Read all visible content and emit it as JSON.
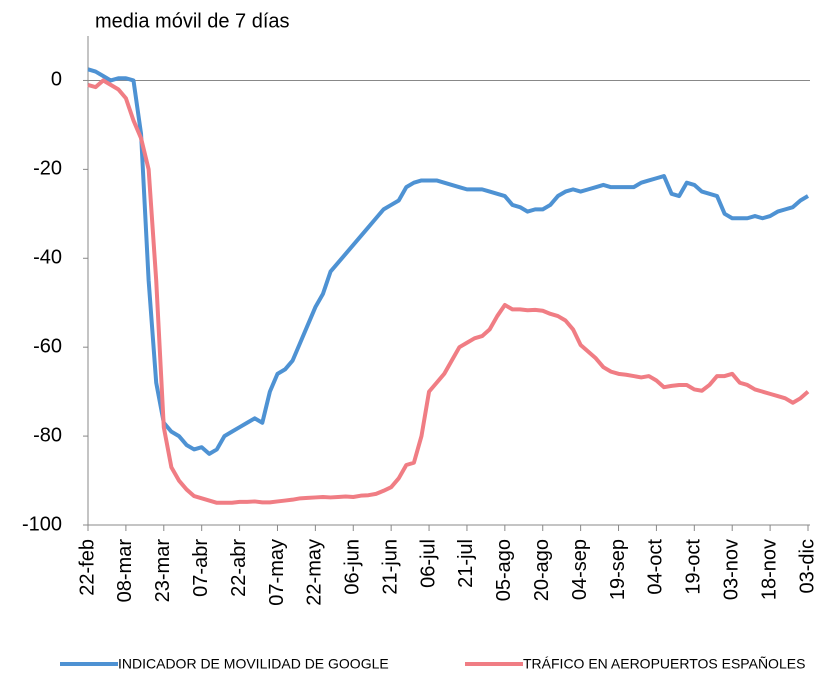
{
  "chart_data": {
    "type": "line",
    "subtitle": "media móvil de 7 días",
    "categories": [
      "22-feb",
      null,
      null,
      null,
      null,
      "08-mar",
      null,
      null,
      null,
      null,
      "23-mar",
      null,
      null,
      null,
      null,
      "07-abr",
      null,
      null,
      null,
      null,
      "22-abr",
      null,
      null,
      null,
      null,
      "07-may",
      null,
      null,
      null,
      null,
      "22-may",
      null,
      null,
      null,
      null,
      "06-jun",
      null,
      null,
      null,
      null,
      "21-jun",
      null,
      null,
      null,
      null,
      "06-jul",
      null,
      null,
      null,
      null,
      "21-jul",
      null,
      null,
      null,
      null,
      "05-ago",
      null,
      null,
      null,
      null,
      "20-ago",
      null,
      null,
      null,
      null,
      "04-sep",
      null,
      null,
      null,
      null,
      "19-sep",
      null,
      null,
      null,
      null,
      "04-oct",
      null,
      null,
      null,
      null,
      "19-oct",
      null,
      null,
      null,
      null,
      "03-nov",
      null,
      null,
      null,
      null,
      "18-nov",
      null,
      null,
      null,
      null,
      "03-dic"
    ],
    "series": [
      {
        "name": "INDICADOR DE MOVILIDAD DE GOOGLE",
        "color": "#4e92d3",
        "values": [
          2.5,
          2,
          1,
          0,
          0.5,
          0.5,
          0,
          -12,
          -45,
          -68,
          -77,
          -79,
          -80,
          -82,
          -83,
          -82.5,
          -84,
          -83,
          -80,
          -79,
          -78,
          -77,
          -76,
          -77,
          -70,
          -66,
          -65,
          -63,
          -59,
          -55,
          -51,
          -48,
          -43,
          -41,
          -39,
          -37,
          -35,
          -33,
          -31,
          -29,
          -28,
          -27,
          -24,
          -23,
          -22.5,
          -22.5,
          -22.5,
          -23,
          -23.5,
          -24,
          -24.5,
          -24.5,
          -24.5,
          -25,
          -25.5,
          -26,
          -28,
          -28.5,
          -29.5,
          -29,
          -29,
          -28,
          -26,
          -25,
          -24.5,
          -25,
          -24.5,
          -24,
          -23.5,
          -24,
          -24,
          -24,
          -24,
          -23,
          -22.5,
          -22,
          -21.5,
          -25.5,
          -26,
          -23,
          -23.5,
          -25,
          -25.5,
          -26,
          -30,
          -31,
          -31,
          -31,
          -30.5,
          -31,
          -30.5,
          -29.5,
          -29,
          -28.5,
          -27,
          -26
        ]
      },
      {
        "name": "TRÁFICO EN AEROPUERTOS ESPAÑOLES",
        "color": "#f07d84",
        "values": [
          -1,
          -1.5,
          0,
          -1,
          -2,
          -4,
          -9,
          -13,
          -20,
          -45,
          -78,
          -87,
          -90,
          -92,
          -93.5,
          -94,
          -94.5,
          -95,
          -95,
          -95,
          -94.8,
          -94.8,
          -94.7,
          -94.9,
          -94.9,
          -94.7,
          -94.5,
          -94.3,
          -94,
          -93.9,
          -93.8,
          -93.7,
          -93.8,
          -93.7,
          -93.6,
          -93.7,
          -93.4,
          -93.3,
          -93,
          -92.3,
          -91.5,
          -89.5,
          -86.5,
          -86,
          -80,
          -70,
          -68,
          -66,
          -63,
          -60,
          -59,
          -58,
          -57.5,
          -56,
          -53,
          -50.5,
          -51.5,
          -51.5,
          -51.7,
          -51.6,
          -51.8,
          -52.5,
          -53,
          -54,
          -56,
          -59.5,
          -61,
          -62.5,
          -64.5,
          -65.5,
          -66,
          -66.2,
          -66.5,
          -66.8,
          -66.5,
          -67.5,
          -69,
          -68.7,
          -68.5,
          -68.5,
          -69.5,
          -69.8,
          -68.5,
          -66.5,
          -66.5,
          -66,
          -68,
          -68.5,
          -69.5,
          -70,
          -70.5,
          -71,
          -71.5,
          -72.5,
          -71.5,
          -70
        ]
      }
    ],
    "ylim": [
      -100,
      10
    ],
    "yticks": [
      -100,
      -80,
      -60,
      -40,
      -20,
      0
    ]
  }
}
